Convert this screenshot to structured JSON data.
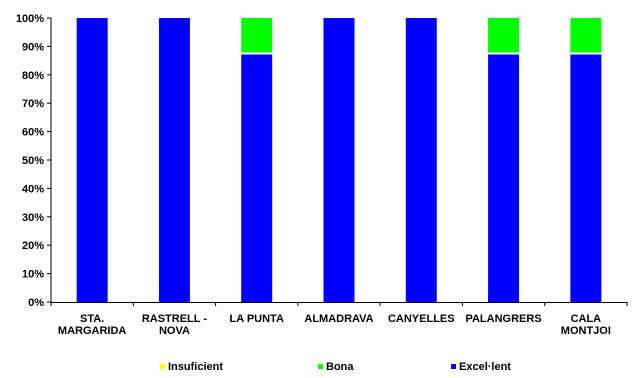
{
  "chart_data": {
    "type": "bar",
    "stacked": true,
    "percent": true,
    "categories": [
      [
        "STA.",
        "MARGARIDA"
      ],
      [
        "RASTRELL -",
        "NOVA"
      ],
      [
        "LA PUNTA"
      ],
      [
        "ALMADRAVA"
      ],
      [
        "CANYELLES"
      ],
      [
        "PALANGRERS"
      ],
      [
        "CALA",
        "MONTJOI"
      ]
    ],
    "series": [
      {
        "name": "Excel·lent",
        "color": "#0000ff",
        "values": [
          100,
          100,
          87.5,
          100,
          100,
          87.5,
          87.5
        ]
      },
      {
        "name": "Bona",
        "color": "#00ff00",
        "values": [
          0,
          0,
          12.5,
          0,
          0,
          12.5,
          12.5
        ]
      },
      {
        "name": "Insuficient",
        "color": "#ffff00",
        "values": [
          0,
          0,
          0,
          0,
          0,
          0,
          0
        ]
      }
    ],
    "legend_order": [
      "Insuficient",
      "Bona",
      "Excel·lent"
    ],
    "yticks": [
      "0%",
      "10%",
      "20%",
      "30%",
      "40%",
      "50%",
      "60%",
      "70%",
      "80%",
      "90%",
      "100%"
    ],
    "ylim": [
      0,
      100
    ],
    "grid": false,
    "legend_position": "bottom"
  }
}
